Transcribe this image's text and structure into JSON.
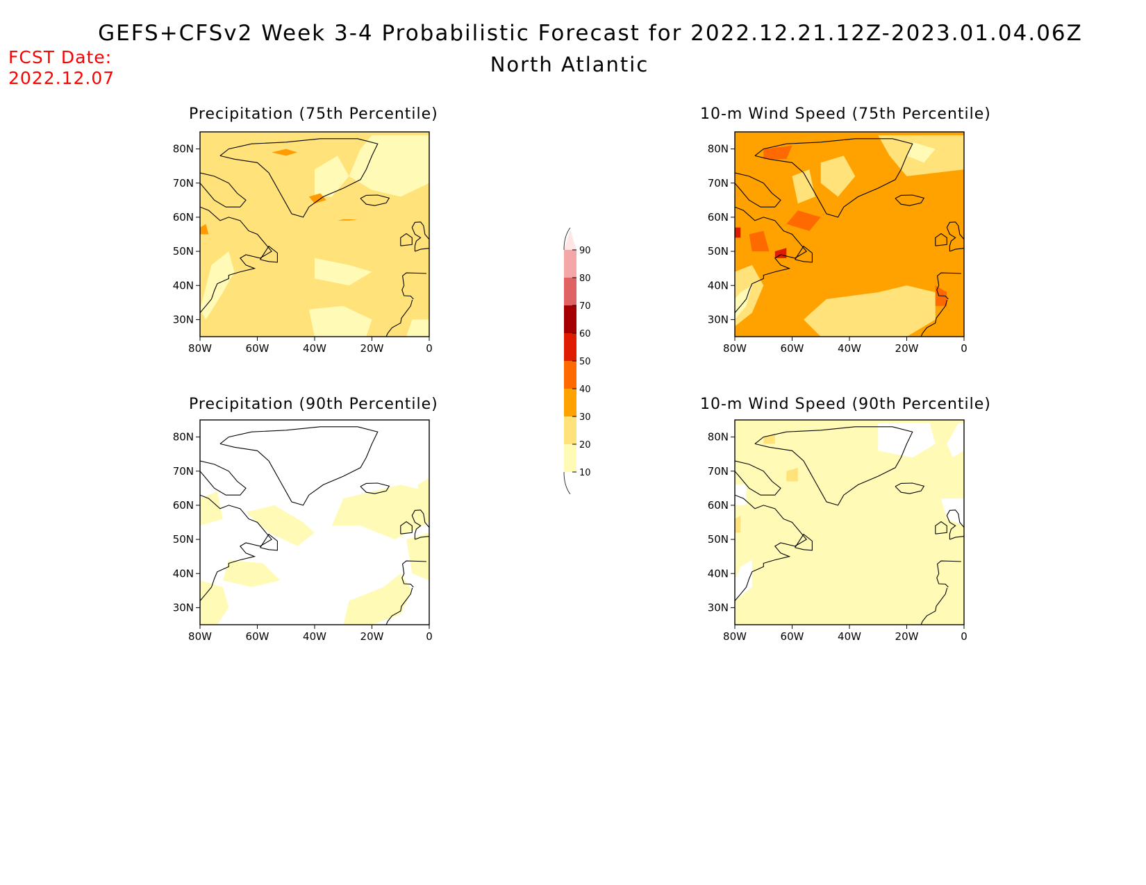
{
  "header": {
    "title": "GEFS+CFSv2 Week 3-4 Probabilistic Forecast for 2022.12.21.12Z-2023.01.04.06Z",
    "subtitle": "North Atlantic",
    "fcst_label": "FCST Date:",
    "fcst_date": "2022.12.07"
  },
  "axes": {
    "lat_labels": [
      "80N",
      "70N",
      "60N",
      "50N",
      "40N",
      "30N"
    ],
    "lon_labels": [
      "80W",
      "60W",
      "40W",
      "20W",
      "0"
    ]
  },
  "colorbar": {
    "levels": [
      "10",
      "20",
      "30",
      "40",
      "50",
      "60",
      "70",
      "80",
      "90"
    ],
    "colors": [
      "#fffbb6",
      "#ffe27a",
      "#ffa200",
      "#ff6a00",
      "#e01c00",
      "#a50000",
      "#e06363",
      "#f4a7a7",
      "#ffe6e6"
    ]
  },
  "panels": [
    {
      "id": "precip75",
      "title": "Precipitation (75th Percentile)",
      "dominant": "#ffe27a"
    },
    {
      "id": "wind75",
      "title": "10-m Wind Speed (75th Percentile)",
      "dominant": "#ffa200"
    },
    {
      "id": "precip90",
      "title": "Precipitation (90th Percentile)",
      "dominant": "#ffffff"
    },
    {
      "id": "wind90",
      "title": "10-m Wind Speed (90th Percentile)",
      "dominant": "#fffbb6"
    }
  ]
}
